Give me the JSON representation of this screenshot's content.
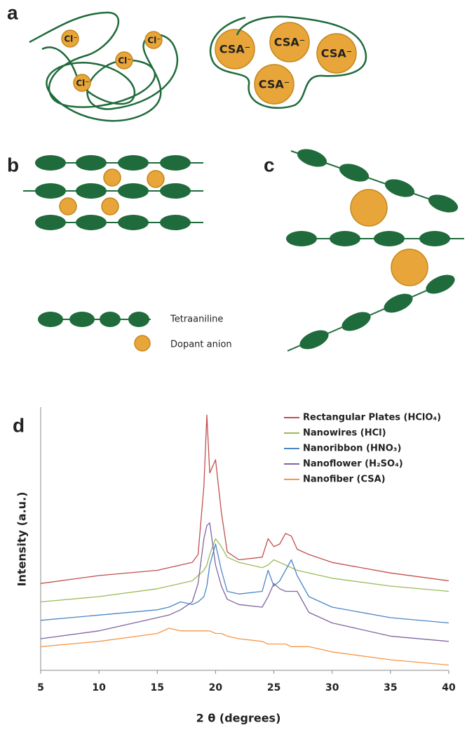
{
  "figure": {
    "panel_labels": [
      "a",
      "b",
      "c",
      "d"
    ],
    "chloride_labels": [
      "Cl⁻",
      "Cl⁻",
      "Cl⁻",
      "Cl⁻"
    ],
    "csa_labels": [
      "CSA⁻",
      "CSA⁻",
      "CSA⁻",
      "CSA⁻"
    ],
    "legend": {
      "chain": "Tetraaniline",
      "anion": "Dopant anion"
    }
  },
  "chart_data": {
    "type": "line",
    "xlabel": "2 θ (degrees)",
    "ylabel": "Intensity (a.u.)",
    "x": [
      5,
      10,
      15,
      16,
      17,
      18,
      18.5,
      19,
      19.25,
      19.5,
      20,
      20.5,
      21,
      22,
      24,
      24.5,
      25,
      25.5,
      26,
      26.5,
      27,
      28,
      30,
      35,
      40
    ],
    "series": [
      {
        "name": "Rectangular Plates (HClO₄)",
        "color": "#c0504d",
        "values": [
          33,
          36,
          38,
          39,
          40,
          41,
          44,
          70,
          97,
          75,
          80,
          60,
          45,
          42,
          43,
          50,
          47,
          48,
          52,
          51,
          46,
          44,
          41,
          37,
          34
        ]
      },
      {
        "name": "Nanowires (HCl)",
        "color": "#9bbb59",
        "values": [
          26,
          28,
          31,
          32,
          33,
          34,
          36,
          38,
          40,
          44,
          50,
          47,
          43,
          41,
          39,
          40,
          42,
          41,
          40,
          39,
          38,
          37,
          35,
          32,
          30
        ]
      },
      {
        "name": "Nanoribbon (HNO₃)",
        "color": "#4a86c6",
        "values": [
          19,
          21,
          23,
          24,
          26,
          25,
          26,
          28,
          32,
          40,
          48,
          38,
          30,
          29,
          30,
          38,
          32,
          34,
          38,
          42,
          36,
          28,
          24,
          20,
          18
        ]
      },
      {
        "name": "Nanoflower (H₂SO₄)",
        "color": "#8064a2",
        "values": [
          12,
          15,
          20,
          21,
          23,
          26,
          33,
          50,
          55,
          56,
          40,
          32,
          27,
          25,
          24,
          28,
          33,
          31,
          30,
          30,
          30,
          22,
          18,
          13,
          11
        ]
      },
      {
        "name": "Nanofiber (CSA)",
        "color": "#f79646",
        "values": [
          9,
          11,
          14,
          16,
          15,
          15,
          15,
          15,
          15,
          15,
          14,
          14,
          13,
          12,
          11,
          10,
          10,
          10,
          10,
          9,
          9,
          9,
          7,
          4,
          2
        ]
      }
    ],
    "xlim": [
      5,
      40
    ],
    "xticks": [
      5,
      10,
      15,
      20,
      25,
      30,
      35,
      40
    ],
    "ylim": [
      0,
      100
    ],
    "legend": "upper right"
  }
}
